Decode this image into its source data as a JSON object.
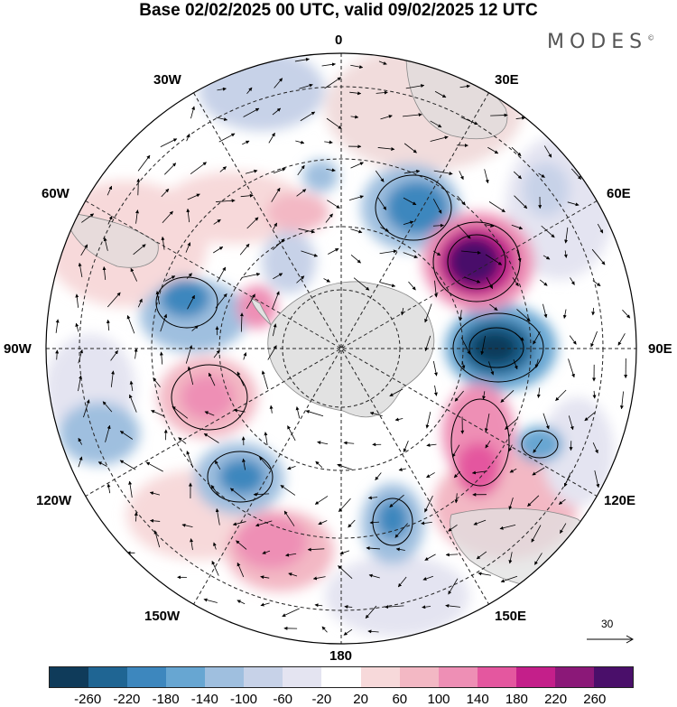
{
  "title": "Base 02/02/2025 00 UTC, valid 09/02/2025 12 UTC",
  "brand": "MODES",
  "brand_mark": "©",
  "longitude_labels": {
    "n0": "0",
    "n30e": "30E",
    "n60e": "60E",
    "n90e": "90E",
    "n120e": "120E",
    "n150e": "150E",
    "n180": "180",
    "n150w": "150W",
    "n120w": "120W",
    "n90w": "90W",
    "n60w": "60W",
    "n30w": "30W"
  },
  "reference_vector": "30",
  "colorbar": {
    "ticks": [
      "-260",
      "-220",
      "-180",
      "-140",
      "-100",
      "-60",
      "-20",
      "20",
      "60",
      "100",
      "140",
      "180",
      "220",
      "260"
    ],
    "colors": [
      "#0f3b5a",
      "#1f6593",
      "#3d87be",
      "#67a6d2",
      "#9fbfdf",
      "#c7d2e8",
      "#e4e4f1",
      "#ffffff",
      "#f7d9da",
      "#f3b8c4",
      "#ee8fb5",
      "#e4579f",
      "#c41f8a",
      "#8b1878",
      "#4a0f6a"
    ]
  },
  "colors": {
    "land": "#d4d4d4",
    "grid": "#222222",
    "vector": "#000000"
  }
}
